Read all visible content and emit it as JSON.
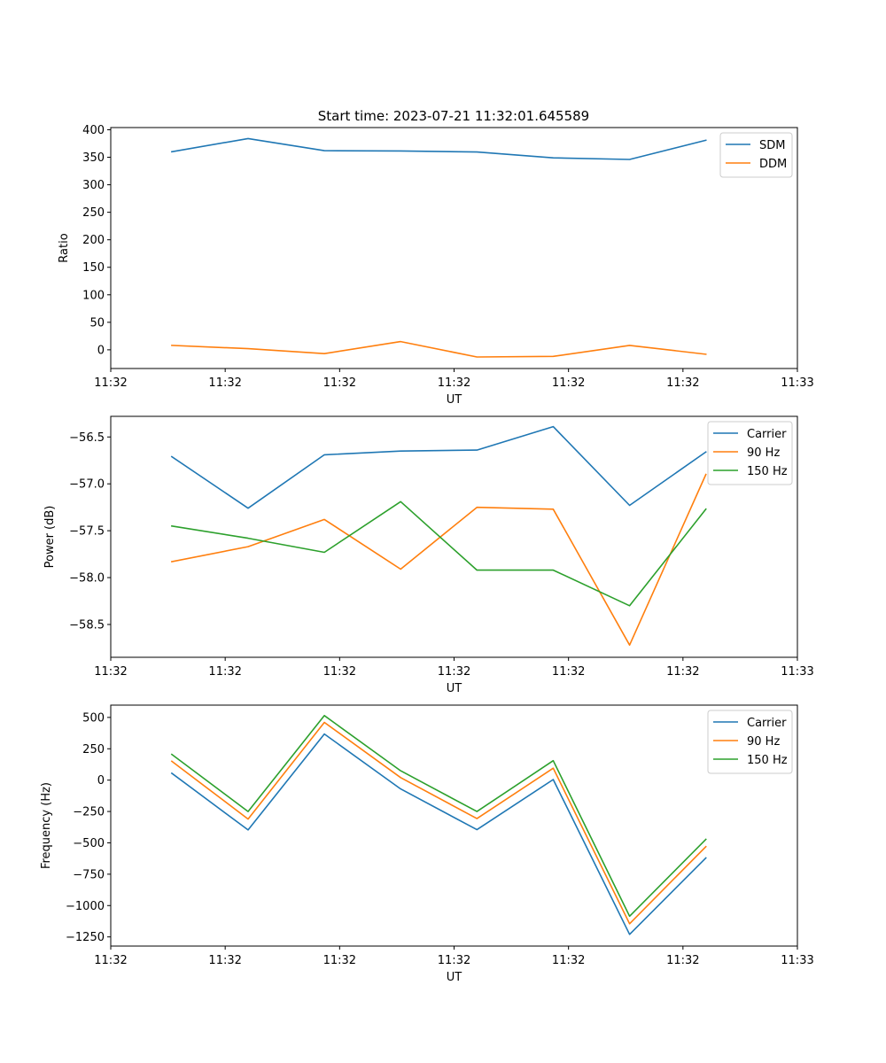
{
  "title": "Start time: 2023-07-21 11:32:01.645589",
  "chart_data": [
    {
      "type": "line",
      "xlabel": "UT",
      "ylabel": "Ratio",
      "x": [
        1,
        2,
        3,
        4,
        5,
        6,
        7,
        8
      ],
      "xlim": [
        0.2,
        9.2
      ],
      "xticks": [
        0.2,
        1.7,
        3.2,
        4.7,
        6.2,
        7.7,
        9.2
      ],
      "xticklabels": [
        "11:32",
        "11:32",
        "11:32",
        "11:32",
        "11:32",
        "11:32",
        "11:33"
      ],
      "ylim": [
        -34,
        404
      ],
      "yticks": [
        0,
        50,
        100,
        150,
        200,
        250,
        300,
        350,
        400
      ],
      "legend_loc": "top-right",
      "series": [
        {
          "name": "SDM",
          "color": "#1f77b4",
          "values": [
            360,
            384,
            362,
            361.5,
            359.5,
            349,
            346,
            381
          ]
        },
        {
          "name": "DDM",
          "color": "#ff7f0e",
          "values": [
            8,
            2,
            -7,
            15,
            -13,
            -12,
            8,
            -8
          ]
        }
      ]
    },
    {
      "type": "line",
      "xlabel": "UT",
      "ylabel": "Power (dB)",
      "x": [
        1,
        2,
        3,
        4,
        5,
        6,
        7,
        8
      ],
      "xlim": [
        0.2,
        9.2
      ],
      "xticks": [
        0.2,
        1.7,
        3.2,
        4.7,
        6.2,
        7.7,
        9.2
      ],
      "xticklabels": [
        "11:32",
        "11:32",
        "11:32",
        "11:32",
        "11:32",
        "11:32",
        "11:33"
      ],
      "ylim": [
        -58.85,
        -56.28
      ],
      "yticks": [
        -58.5,
        -58.0,
        -57.5,
        -57.0,
        -56.5
      ],
      "yticklabels": [
        "−58.5",
        "−58.0",
        "−57.5",
        "−57.0",
        "−56.5"
      ],
      "legend_loc": "top-right",
      "series": [
        {
          "name": "Carrier",
          "color": "#1f77b4",
          "values": [
            -56.71,
            -57.26,
            -56.69,
            -56.65,
            -56.64,
            -56.39,
            -57.23,
            -56.66
          ]
        },
        {
          "name": "90 Hz",
          "color": "#ff7f0e",
          "values": [
            -57.83,
            -57.67,
            -57.38,
            -57.91,
            -57.25,
            -57.27,
            -58.72,
            -56.9
          ]
        },
        {
          "name": "150 Hz",
          "color": "#2ca02c",
          "values": [
            -57.45,
            -57.58,
            -57.73,
            -57.19,
            -57.92,
            -57.92,
            -58.3,
            -57.27
          ]
        }
      ]
    },
    {
      "type": "line",
      "xlabel": "UT",
      "ylabel": "Frequency (Hz)",
      "x": [
        1,
        2,
        3,
        4,
        5,
        6,
        7,
        8
      ],
      "xlim": [
        0.2,
        9.2
      ],
      "xticks": [
        0.2,
        1.7,
        3.2,
        4.7,
        6.2,
        7.7,
        9.2
      ],
      "xticklabels": [
        "11:32",
        "11:32",
        "11:32",
        "11:32",
        "11:32",
        "11:32",
        "11:33"
      ],
      "ylim": [
        -1323,
        598
      ],
      "yticks": [
        -1250,
        -1000,
        -750,
        -500,
        -250,
        0,
        250,
        500
      ],
      "yticklabels": [
        "−1250",
        "−1000",
        "−750",
        "−500",
        "−250",
        "0",
        "250",
        "500"
      ],
      "legend_loc": "top-right",
      "series": [
        {
          "name": "Carrier",
          "color": "#1f77b4",
          "values": [
            55,
            -397,
            368,
            -70,
            -395,
            5,
            -1230,
            -620
          ]
        },
        {
          "name": "90 Hz",
          "color": "#ff7f0e",
          "values": [
            150,
            -310,
            460,
            20,
            -307,
            95,
            -1145,
            -530
          ]
        },
        {
          "name": "150 Hz",
          "color": "#2ca02c",
          "values": [
            205,
            -250,
            515,
            75,
            -250,
            155,
            -1085,
            -472
          ]
        }
      ]
    }
  ]
}
